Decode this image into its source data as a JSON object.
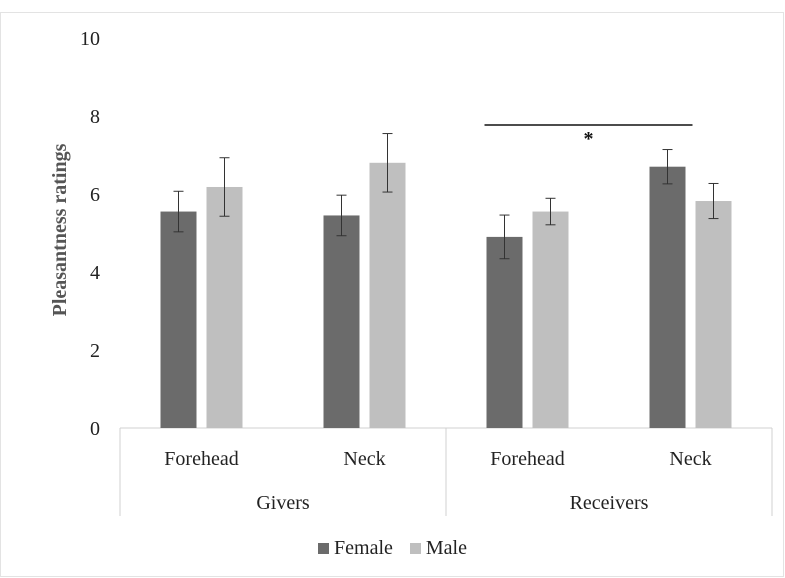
{
  "chart_data": {
    "type": "bar",
    "ylabel": "Pleasantness ratings",
    "ylim": [
      0,
      10
    ],
    "yticks": [
      "0",
      "2",
      "4",
      "6",
      "8",
      "10"
    ],
    "groups": [
      {
        "label": "Givers",
        "categories": [
          "Forehead",
          "Neck"
        ]
      },
      {
        "label": "Receivers",
        "categories": [
          "Forehead",
          "Neck"
        ]
      }
    ],
    "series": [
      {
        "name": "Female",
        "color": "#6b6b6b",
        "values": [
          5.55,
          5.45,
          4.9,
          6.7
        ],
        "errors": [
          0.52,
          0.52,
          0.56,
          0.44
        ]
      },
      {
        "name": "Male",
        "color": "#bfbfbf",
        "values": [
          6.18,
          6.8,
          5.55,
          5.82
        ],
        "errors": [
          0.75,
          0.75,
          0.34,
          0.45
        ]
      }
    ],
    "annotations": [
      {
        "text": "*",
        "from": "Receivers-Forehead",
        "to": "Receivers-Neck"
      }
    ],
    "grid": false,
    "legend_position": "bottom"
  }
}
